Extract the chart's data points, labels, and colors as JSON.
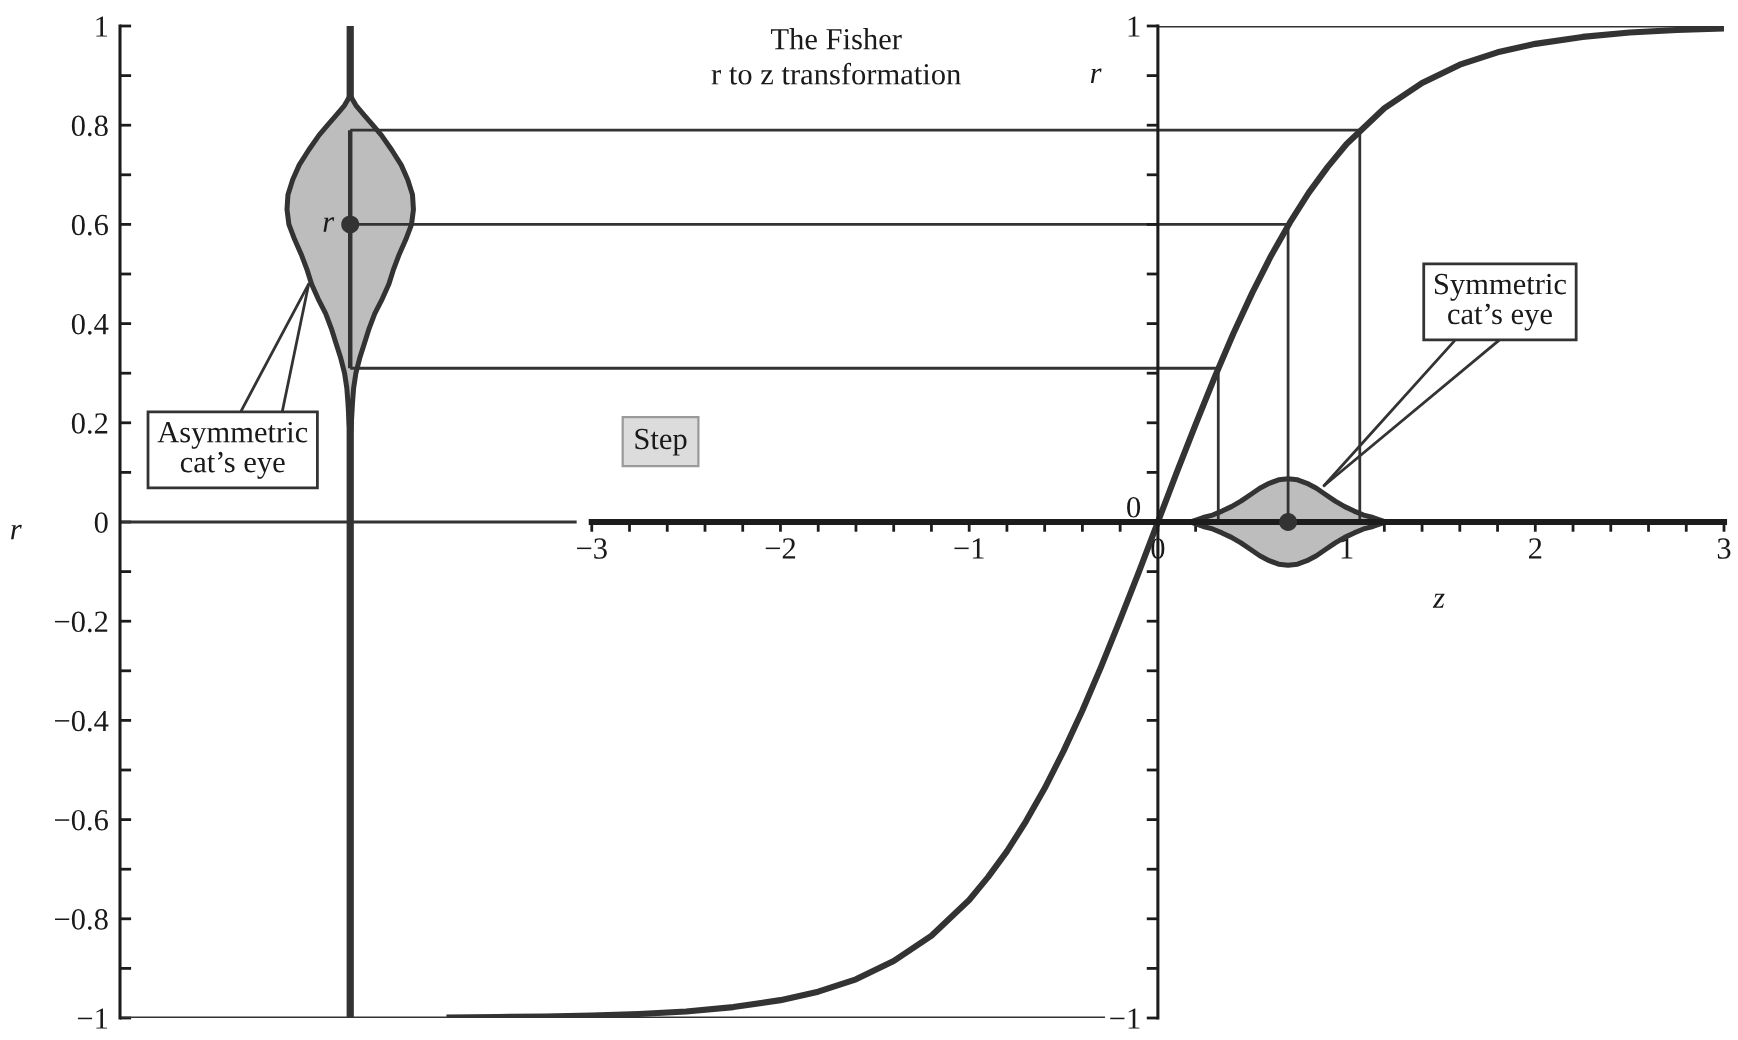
{
  "chart_data": {
    "type": "line",
    "title": "The Fisher\nr to z transformation",
    "xlabel": "z",
    "ylabel": "r",
    "y2label": "r",
    "xlim": [
      -5.5,
      3
    ],
    "ylim": [
      -1,
      1
    ],
    "y2lim": [
      -1,
      1
    ],
    "xticks": [
      {
        "value": -3,
        "label": "−3"
      },
      {
        "value": -2.8,
        "label": null
      },
      {
        "value": -2.6,
        "label": null
      },
      {
        "value": -2.4,
        "label": null
      },
      {
        "value": -2.2,
        "label": null
      },
      {
        "value": -2,
        "label": "−2"
      },
      {
        "value": -1.8,
        "label": null
      },
      {
        "value": -1.6,
        "label": null
      },
      {
        "value": -1.4,
        "label": null
      },
      {
        "value": -1.2,
        "label": null
      },
      {
        "value": -1,
        "label": "−1"
      },
      {
        "value": -0.8,
        "label": null
      },
      {
        "value": -0.6,
        "label": null
      },
      {
        "value": -0.4,
        "label": null
      },
      {
        "value": -0.2,
        "label": null
      },
      0,
      {
        "value": 0.2,
        "label": null
      },
      {
        "value": 0.4,
        "label": null
      },
      {
        "value": 0.6,
        "label": null
      },
      {
        "value": 0.8,
        "label": null
      },
      1,
      {
        "value": 1.2,
        "label": null
      },
      {
        "value": 1.4,
        "label": null
      },
      {
        "value": 1.6,
        "label": null
      },
      {
        "value": 1.8,
        "label": null
      },
      2,
      {
        "value": 2.2,
        "label": null
      },
      {
        "value": 2.4,
        "label": null
      },
      {
        "value": 2.6,
        "label": null
      },
      {
        "value": 2.8,
        "label": null
      },
      3
    ],
    "yticks": [
      {
        "value": -1,
        "label": "−1"
      },
      {
        "value": -0.9,
        "label": null
      },
      {
        "value": -0.8,
        "label": "−0.8"
      },
      {
        "value": -0.7,
        "label": null
      },
      {
        "value": -0.6,
        "label": "−0.6"
      },
      {
        "value": -0.5,
        "label": null
      },
      {
        "value": -0.4,
        "label": "−0.4"
      },
      {
        "value": -0.3,
        "label": null
      },
      {
        "value": -0.2,
        "label": "−0.2"
      },
      {
        "value": -0.1,
        "label": null
      },
      0,
      {
        "value": 0.1,
        "label": null
      },
      0.2,
      {
        "value": 0.3,
        "label": null
      },
      0.4,
      {
        "value": 0.5,
        "label": null
      },
      0.6,
      {
        "value": 0.7,
        "label": null
      },
      0.8,
      {
        "value": 0.9,
        "label": null
      },
      1
    ],
    "y2ticks": [
      {
        "value": -1,
        "label": "−1"
      },
      {
        "value": -0.9,
        "label": null
      },
      {
        "value": -0.8,
        "label": null
      },
      {
        "value": -0.7,
        "label": null
      },
      {
        "value": -0.6,
        "label": null
      },
      {
        "value": -0.5,
        "label": null
      },
      {
        "value": -0.4,
        "label": null
      },
      {
        "value": -0.3,
        "label": null
      },
      {
        "value": -0.2,
        "label": null
      },
      {
        "value": -0.1,
        "label": null
      },
      0,
      {
        "value": 0.1,
        "label": null
      },
      {
        "value": 0.2,
        "label": null
      },
      {
        "value": 0.3,
        "label": null
      },
      {
        "value": 0.4,
        "label": null
      },
      {
        "value": 0.5,
        "label": null
      },
      {
        "value": 0.6,
        "label": null
      },
      {
        "value": 0.7,
        "label": null
      },
      {
        "value": 0.8,
        "label": null
      },
      {
        "value": 0.9,
        "label": null
      },
      1
    ],
    "series": [
      {
        "color": "#333333",
        "x": [
          -3.77,
          -3.5,
          -3.25,
          -3,
          -2.75,
          -2.5,
          -2.25,
          -2,
          -1.8,
          -1.6,
          -1.4,
          -1.2,
          -1,
          -0.9,
          -0.8,
          -0.7,
          -0.6,
          -0.5,
          -0.4,
          -0.3,
          -0.2,
          -0.1,
          0,
          0.1,
          0.2,
          0.3,
          0.4,
          0.5,
          0.6,
          0.7,
          0.8,
          0.9,
          1,
          1.2,
          1.4,
          1.6,
          1.8,
          2,
          2.25,
          2.5,
          2.75,
          3
        ],
        "values": [
          -0.999,
          -0.998,
          -0.997,
          -0.995,
          -0.992,
          -0.987,
          -0.978,
          -0.964,
          -0.947,
          -0.922,
          -0.885,
          -0.834,
          -0.762,
          -0.716,
          -0.664,
          -0.604,
          -0.537,
          -0.462,
          -0.38,
          -0.291,
          -0.197,
          -0.1,
          0,
          0.1,
          0.197,
          0.291,
          0.38,
          0.462,
          0.537,
          0.604,
          0.664,
          0.716,
          0.762,
          0.834,
          0.885,
          0.922,
          0.947,
          0.964,
          0.978,
          0.987,
          0.992,
          0.995
        ]
      },
      {
        "type": "line",
        "color": "#333333",
        "x": [
          -4.28,
          -4.28
        ],
        "values": [
          -1,
          1
        ]
      },
      {
        "type": "area",
        "color": "#bdbdbd",
        "x": [
          -4.28,
          -4.25,
          -4.205,
          -4.16,
          -4.115,
          -4.06,
          -4.01,
          -3.975,
          -3.95,
          -3.945,
          -3.955,
          -3.985,
          -4.02,
          -4.05,
          -4.075,
          -4.11,
          -4.15,
          -4.18,
          -4.205,
          -4.23,
          -4.25,
          -4.262,
          -4.268,
          -4.274,
          -4.28,
          -4.286,
          -4.292,
          -4.298,
          -4.31,
          -4.33,
          -4.355,
          -4.38,
          -4.41,
          -4.45,
          -4.485,
          -4.51,
          -4.54,
          -4.575,
          -4.605,
          -4.615,
          -4.61,
          -4.585,
          -4.55,
          -4.5,
          -4.445,
          -4.4,
          -4.355,
          -4.31
        ],
        "values": [
          0.86,
          0.84,
          0.82,
          0.8,
          0.78,
          0.75,
          0.72,
          0.69,
          0.66,
          0.63,
          0.6,
          0.57,
          0.54,
          0.51,
          0.48,
          0.45,
          0.42,
          0.39,
          0.36,
          0.33,
          0.3,
          0.27,
          0.24,
          0.2,
          0.17,
          0.2,
          0.24,
          0.27,
          0.3,
          0.33,
          0.36,
          0.39,
          0.42,
          0.45,
          0.48,
          0.51,
          0.54,
          0.57,
          0.6,
          0.63,
          0.66,
          0.69,
          0.72,
          0.75,
          0.78,
          0.8,
          0.82,
          0.84
        ]
      },
      {
        "type": "area",
        "color": "#bdbdbd",
        "x": [
          0.17,
          0.24,
          0.29,
          0.34,
          0.39,
          0.44,
          0.49,
          0.54,
          0.59,
          0.64,
          0.69,
          0.74,
          0.79,
          0.84,
          0.89,
          0.94,
          0.99,
          1.04,
          1.09,
          1.14,
          1.21,
          1.14,
          1.09,
          1.04,
          0.99,
          0.94,
          0.89,
          0.84,
          0.79,
          0.74,
          0.69,
          0.64,
          0.59,
          0.54,
          0.49,
          0.44,
          0.39,
          0.34,
          0.29,
          0.24
        ],
        "values": [
          0,
          0.009,
          0.014,
          0.022,
          0.031,
          0.042,
          0.055,
          0.068,
          0.078,
          0.085,
          0.087,
          0.085,
          0.078,
          0.068,
          0.055,
          0.042,
          0.031,
          0.022,
          0.014,
          0.009,
          0,
          -0.009,
          -0.014,
          -0.022,
          -0.031,
          -0.042,
          -0.055,
          -0.068,
          -0.078,
          -0.085,
          -0.087,
          -0.085,
          -0.078,
          -0.068,
          -0.055,
          -0.042,
          -0.031,
          -0.022,
          -0.014,
          -0.009
        ]
      },
      {
        "type": "line",
        "color": "#333333",
        "x": [
          -4.28,
          -4.28
        ],
        "values": [
          0.31,
          0.79
        ]
      },
      {
        "type": "line",
        "color": "#333333",
        "x": [
          -4.28,
          1.07,
          1.07
        ],
        "values": [
          0.79,
          0.79,
          0
        ]
      },
      {
        "type": "line",
        "color": "#333333",
        "x": [
          -4.28,
          0.69,
          0.69
        ],
        "values": [
          0.6,
          0.6,
          0
        ]
      },
      {
        "type": "line",
        "color": "#333333",
        "x": [
          -4.28,
          0.32,
          0.32
        ],
        "values": [
          0.31,
          0.31,
          0
        ]
      },
      {
        "type": "line",
        "color": "#333333",
        "x": [
          -5.5,
          -0.28
        ],
        "values": [
          -1,
          -1
        ]
      },
      {
        "type": "line",
        "color": "#333333",
        "x": [
          0,
          3
        ],
        "values": [
          1,
          1
        ]
      },
      {
        "type": "line",
        "color": "#333333",
        "x": [
          -5.5,
          -3.08
        ],
        "values": [
          0,
          0
        ]
      },
      {
        "type": "scatter",
        "color": "#333333",
        "marker": "circle",
        "x": [
          -4.28,
          0.69
        ],
        "values": [
          0.6,
          0
        ]
      }
    ],
    "annotations": [
      {
        "text": "r",
        "x": -4.28,
        "y": 0.6
      },
      {
        "text": "Asymmetric\ncat’s eye",
        "x": -4.5,
        "y": 0.48
      },
      {
        "text": "Symmetric\ncat’s eye",
        "x": 0.88,
        "y": 0.073
      },
      "Step"
    ]
  }
}
